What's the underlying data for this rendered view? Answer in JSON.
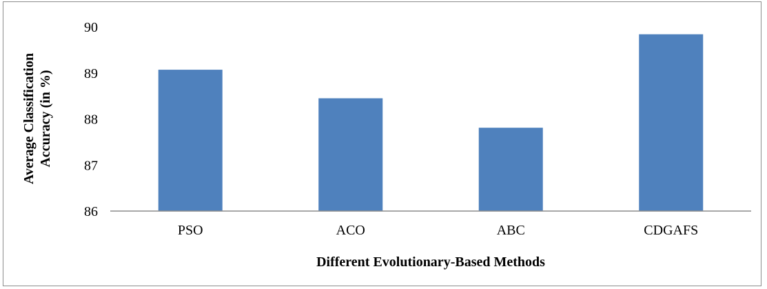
{
  "chart_data": {
    "type": "bar",
    "categories": [
      "PSO",
      "ACO",
      "ABC",
      "CDGAFS"
    ],
    "values": [
      89.07,
      88.45,
      87.81,
      89.84
    ],
    "xlabel": "Different Evolutionary-Based Methods",
    "ylabel_lines": [
      "Average Classification",
      "Accuracy (in %)"
    ],
    "ylim": [
      86,
      90
    ],
    "yticks": [
      86,
      87,
      88,
      89,
      90
    ],
    "grid": false,
    "legend": "none",
    "colors": {
      "bar": "#4f81bd",
      "axis": "#8c8c8c"
    }
  }
}
